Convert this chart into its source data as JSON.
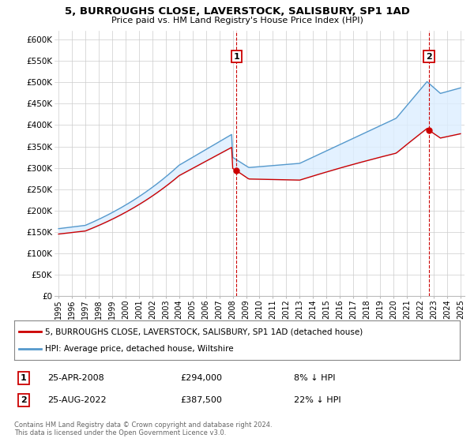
{
  "title": "5, BURROUGHS CLOSE, LAVERSTOCK, SALISBURY, SP1 1AD",
  "subtitle": "Price paid vs. HM Land Registry's House Price Index (HPI)",
  "legend_line1": "5, BURROUGHS CLOSE, LAVERSTOCK, SALISBURY, SP1 1AD (detached house)",
  "legend_line2": "HPI: Average price, detached house, Wiltshire",
  "house_color": "#cc0000",
  "hpi_color": "#5599cc",
  "fill_color": "#ddeeff",
  "annotation1_label": "1",
  "annotation1_date": "25-APR-2008",
  "annotation1_price": "£294,000",
  "annotation1_hpi": "8% ↓ HPI",
  "annotation1_year": 2008.29,
  "annotation1_value": 294000,
  "annotation2_label": "2",
  "annotation2_date": "25-AUG-2022",
  "annotation2_price": "£387,500",
  "annotation2_hpi": "22% ↓ HPI",
  "annotation2_year": 2022.65,
  "annotation2_value": 387500,
  "ylim": [
    0,
    620000
  ],
  "yticks": [
    0,
    50000,
    100000,
    150000,
    200000,
    250000,
    300000,
    350000,
    400000,
    450000,
    500000,
    550000,
    600000
  ],
  "footer": "Contains HM Land Registry data © Crown copyright and database right 2024.\nThis data is licensed under the Open Government Licence v3.0.",
  "background_color": "#ffffff",
  "grid_color": "#cccccc"
}
